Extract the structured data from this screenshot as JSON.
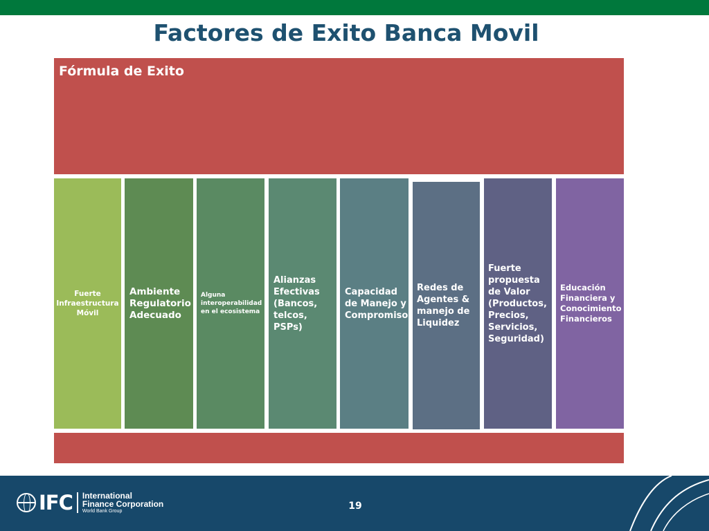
{
  "slide": {
    "title": "Factores de Exito Banca Movil",
    "formula_label": "Fórmula de Exito",
    "page_number": "19"
  },
  "pillars": [
    {
      "label": "Fuerte\nInfraestructura\nMóvil",
      "color": "#9bbb59"
    },
    {
      "label": "Ambiente\nRegulatorio\nAdecuado",
      "color": "#5e8b53"
    },
    {
      "label": "Alguna\ninteroperabilidad\nen el ecosistema",
      "color": "#5a8a62"
    },
    {
      "label": "Alianzas\nEfectivas\n(Bancos,\ntelcos, PSPs)",
      "color": "#5b8972"
    },
    {
      "label": "Capacidad\nde Manejo y\nCompromiso",
      "color": "#5b7f84"
    },
    {
      "label": "Redes de\nAgentes &\nmanejo de\nLiquidez",
      "color": "#5c6f84"
    },
    {
      "label": "Fuerte\npropuesta\nde Valor\n(Productos,\nPrecios,\nServicios,\nSeguridad)",
      "color": "#5f6184"
    },
    {
      "label": "Educación\nFinanciera y\nConocimiento\nFinancieros",
      "color": "#8064a2"
    }
  ],
  "footer": {
    "logo_text": "IFC",
    "org_line1": "International",
    "org_line2": "Finance Corporation",
    "org_sub": "World Bank Group"
  },
  "colors": {
    "top_bar": "#00783c",
    "formula": "#c0504d",
    "footer": "#17486a",
    "title": "#1e5170"
  }
}
